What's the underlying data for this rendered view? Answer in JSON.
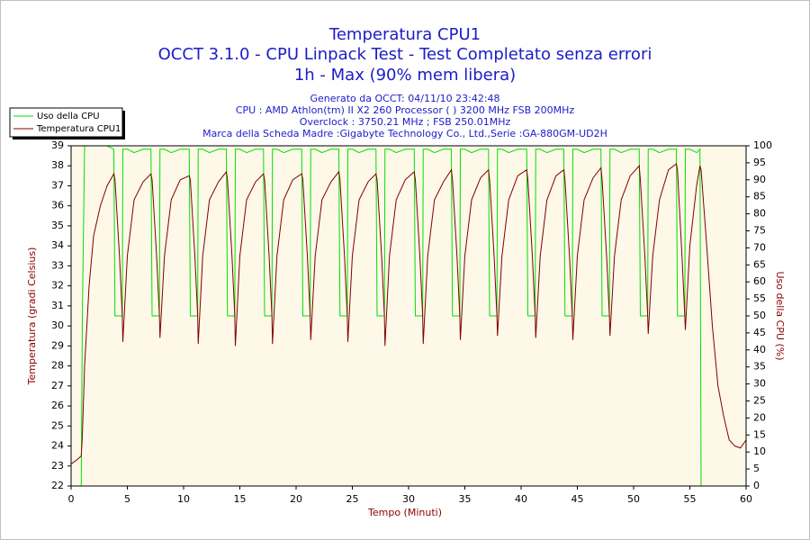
{
  "chart_data": {
    "type": "line",
    "title": [
      "Temperatura CPU1",
      "OCCT 3.1.0 - CPU Linpack Test - Test Completato senza errori",
      "1h - Max (90% mem libera)"
    ],
    "subtitle": [
      "Generato da OCCT: 04/11/10 23:42:48",
      "CPU : AMD Athlon(tm) II X2 260 Processor (  ) 3200 MHz FSB 200MHz",
      "Overclock : 3750.21 MHz ; FSB 250.01MHz",
      "Marca della Scheda Madre :Gigabyte Technology Co., Ltd.,Serie :GA-880GM-UD2H"
    ],
    "xlabel": "Tempo (Minuti)",
    "ylabel": "Temperatura (gradi Celsius)",
    "y2label": "Uso della CPU (%)",
    "xlim": [
      0,
      60
    ],
    "xticks": [
      0,
      5,
      10,
      15,
      20,
      25,
      30,
      35,
      40,
      45,
      50,
      55,
      60
    ],
    "ylim": [
      22,
      39
    ],
    "yticks": [
      22,
      23,
      24,
      25,
      26,
      27,
      28,
      29,
      30,
      31,
      32,
      33,
      34,
      35,
      36,
      37,
      38,
      39
    ],
    "y2lim": [
      0,
      100
    ],
    "y2ticks": [
      0,
      5,
      10,
      15,
      20,
      25,
      30,
      35,
      40,
      45,
      50,
      55,
      60,
      65,
      70,
      75,
      80,
      85,
      90,
      95,
      100
    ],
    "grid": false,
    "legend": "upper left",
    "x": [
      0,
      0.5,
      0.9,
      1.0,
      1.2,
      1.6,
      2.0,
      2.6,
      3.2,
      3.8,
      3.9,
      4.3,
      4.55,
      4.6,
      5.0,
      5.6,
      6.4,
      7.1,
      7.2,
      7.6,
      7.85,
      7.9,
      8.3,
      8.9,
      9.7,
      10.5,
      10.6,
      11.0,
      11.25,
      11.3,
      11.7,
      12.3,
      13.1,
      13.8,
      13.9,
      14.3,
      14.55,
      14.6,
      15.0,
      15.6,
      16.4,
      17.1,
      17.2,
      17.6,
      17.85,
      17.9,
      18.3,
      18.9,
      19.7,
      20.5,
      20.6,
      21.0,
      21.25,
      21.3,
      21.7,
      22.3,
      23.1,
      23.8,
      23.9,
      24.3,
      24.55,
      24.6,
      25.0,
      25.6,
      26.4,
      27.1,
      27.2,
      27.6,
      27.85,
      27.9,
      28.3,
      28.9,
      29.7,
      30.5,
      30.6,
      31.0,
      31.25,
      31.3,
      31.7,
      32.3,
      33.1,
      33.8,
      33.9,
      34.3,
      34.55,
      34.6,
      35.0,
      35.6,
      36.4,
      37.1,
      37.2,
      37.6,
      37.85,
      37.9,
      38.3,
      38.9,
      39.7,
      40.5,
      40.6,
      41.0,
      41.25,
      41.3,
      41.7,
      42.3,
      43.1,
      43.8,
      43.9,
      44.3,
      44.55,
      44.6,
      45.0,
      45.6,
      46.4,
      47.1,
      47.2,
      47.6,
      47.85,
      47.9,
      48.3,
      48.9,
      49.7,
      50.5,
      50.6,
      51.0,
      51.25,
      51.3,
      51.7,
      52.3,
      53.1,
      53.8,
      53.9,
      54.3,
      54.55,
      54.6,
      55.0,
      55.6,
      55.9,
      56.0,
      56.5,
      57.0,
      57.5,
      58.0,
      58.5,
      59.0,
      59.5,
      60.0
    ],
    "series": [
      {
        "name": "Uso della CPU",
        "color": "#00e000",
        "axis": "y2",
        "values": [
          0,
          0,
          0,
          50,
          100,
          100,
          100,
          100,
          100,
          99,
          50,
          50,
          50,
          99,
          99,
          98,
          99,
          99,
          50,
          50,
          50,
          99,
          99,
          98,
          99,
          99,
          50,
          50,
          50,
          99,
          99,
          98,
          99,
          99,
          50,
          50,
          50,
          99,
          99,
          98,
          99,
          99,
          50,
          50,
          50,
          99,
          99,
          98,
          99,
          99,
          50,
          50,
          50,
          99,
          99,
          98,
          99,
          99,
          50,
          50,
          50,
          99,
          99,
          98,
          99,
          99,
          50,
          50,
          50,
          99,
          99,
          98,
          99,
          99,
          50,
          50,
          50,
          99,
          99,
          98,
          99,
          99,
          50,
          50,
          50,
          99,
          99,
          98,
          99,
          99,
          50,
          50,
          50,
          99,
          99,
          98,
          99,
          99,
          50,
          50,
          50,
          99,
          99,
          98,
          99,
          99,
          50,
          50,
          50,
          99,
          99,
          98,
          99,
          99,
          50,
          50,
          50,
          99,
          99,
          98,
          99,
          99,
          50,
          50,
          50,
          99,
          99,
          98,
          99,
          99,
          50,
          50,
          50,
          99,
          99,
          98,
          99,
          0,
          0,
          0,
          0,
          0,
          0,
          0,
          0,
          0
        ]
      },
      {
        "name": "Temperatura CPU1",
        "color": "#800000",
        "values": [
          23.1,
          23.3,
          23.5,
          24.5,
          28,
          32,
          34.5,
          36,
          37,
          37.6,
          37.3,
          33.5,
          30.5,
          29.2,
          33.5,
          36.3,
          37.2,
          37.6,
          37.3,
          33.5,
          30.5,
          29.4,
          33.5,
          36.3,
          37.3,
          37.5,
          37.3,
          33.5,
          30.5,
          29.1,
          33.5,
          36.3,
          37.2,
          37.7,
          37.3,
          33.5,
          30.5,
          29.0,
          33.5,
          36.3,
          37.2,
          37.6,
          37.3,
          33.5,
          30.5,
          29.1,
          33.5,
          36.3,
          37.3,
          37.6,
          37.3,
          33.5,
          30.5,
          29.3,
          33.5,
          36.3,
          37.2,
          37.7,
          37.3,
          33.5,
          30.5,
          29.2,
          33.5,
          36.3,
          37.2,
          37.6,
          37.3,
          33.5,
          30.5,
          29.0,
          33.5,
          36.3,
          37.3,
          37.7,
          37.3,
          33.5,
          30.5,
          29.1,
          33.5,
          36.3,
          37.2,
          37.8,
          37.3,
          33.5,
          30.5,
          29.3,
          33.5,
          36.3,
          37.4,
          37.8,
          37.3,
          33.5,
          30.5,
          29.5,
          33.5,
          36.3,
          37.5,
          37.8,
          37.3,
          33.5,
          30.5,
          29.4,
          33.5,
          36.3,
          37.5,
          37.8,
          37.3,
          33.5,
          30.5,
          29.3,
          33.5,
          36.3,
          37.4,
          37.9,
          37.3,
          33.5,
          30.5,
          29.5,
          33.5,
          36.3,
          37.5,
          38.0,
          37.3,
          33.5,
          30.5,
          29.6,
          33.5,
          36.3,
          37.8,
          38.1,
          37.8,
          33.5,
          30.5,
          29.8,
          34,
          37,
          38,
          37.8,
          34,
          30,
          27,
          25.5,
          24.3,
          24,
          23.9,
          24.3
        ]
      }
    ]
  }
}
